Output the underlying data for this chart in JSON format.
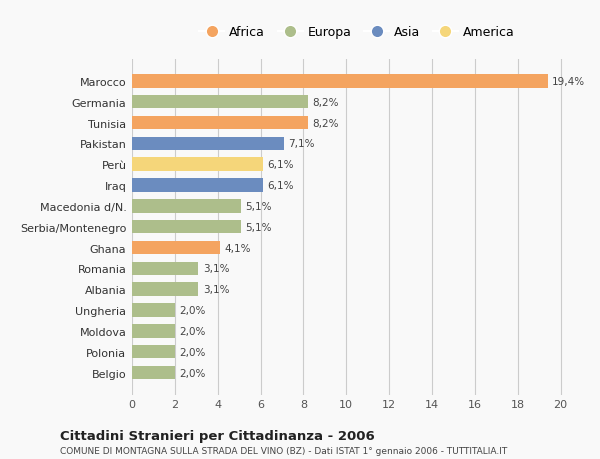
{
  "countries": [
    "Belgio",
    "Polonia",
    "Moldova",
    "Ungheria",
    "Albania",
    "Romania",
    "Ghana",
    "Serbia/Montenegro",
    "Macedonia d/N.",
    "Iraq",
    "Perù",
    "Pakistan",
    "Tunisia",
    "Germania",
    "Marocco"
  ],
  "values": [
    2.0,
    2.0,
    2.0,
    2.0,
    3.1,
    3.1,
    4.1,
    5.1,
    5.1,
    6.1,
    6.1,
    7.1,
    8.2,
    8.2,
    19.4
  ],
  "labels": [
    "2,0%",
    "2,0%",
    "2,0%",
    "2,0%",
    "3,1%",
    "3,1%",
    "4,1%",
    "5,1%",
    "5,1%",
    "6,1%",
    "6,1%",
    "7,1%",
    "8,2%",
    "8,2%",
    "19,4%"
  ],
  "continents": [
    "Europa",
    "Europa",
    "Europa",
    "Europa",
    "Europa",
    "Europa",
    "Africa",
    "Europa",
    "Europa",
    "Asia",
    "America",
    "Asia",
    "Africa",
    "Europa",
    "Africa"
  ],
  "colors": {
    "Africa": "#F4A460",
    "Europa": "#ADBE8B",
    "Asia": "#6B8CBF",
    "America": "#F5D67A"
  },
  "legend_order": [
    "Africa",
    "Europa",
    "Asia",
    "America"
  ],
  "title": "Cittadini Stranieri per Cittadinanza - 2006",
  "subtitle": "COMUNE DI MONTAGNA SULLA STRADA DEL VINO (BZ) - Dati ISTAT 1° gennaio 2006 - TUTTITALIA.IT",
  "xlim": [
    0,
    21
  ],
  "xticks": [
    0,
    2,
    4,
    6,
    8,
    10,
    12,
    14,
    16,
    18,
    20
  ],
  "bg_color": "#f9f9f9",
  "grid_color": "#cccccc"
}
